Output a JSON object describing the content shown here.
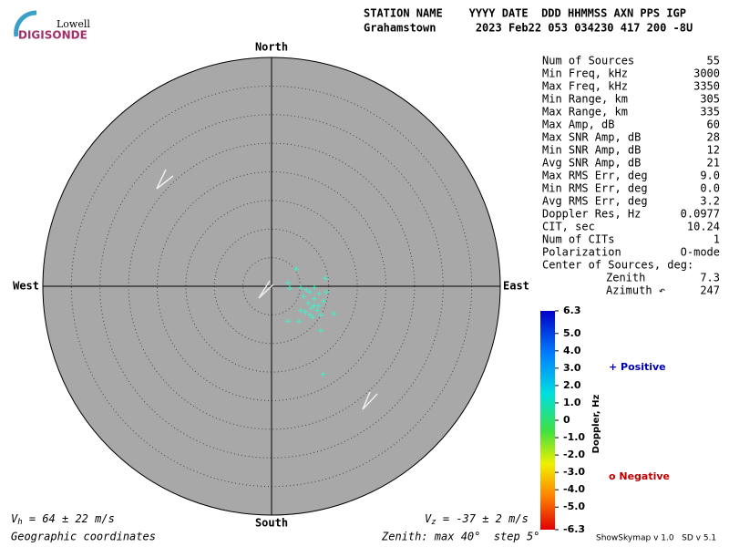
{
  "logo": {
    "small": "Lowell",
    "big": "DIGISONDE"
  },
  "header": {
    "row1": "STATION NAME    YYYY DATE  DDD HHMMSS AXN PPS IGP",
    "row2": "Grahamstown      2023 Feb22 053 034230 417 200 -8U"
  },
  "parameters": [
    {
      "label": "Num of Sources",
      "value": "55"
    },
    {
      "label": "Min Freq, kHz",
      "value": "3000"
    },
    {
      "label": "Max Freq, kHz",
      "value": "3350"
    },
    {
      "label": "Min Range, km",
      "value": "305"
    },
    {
      "label": "Max Range, km",
      "value": "335"
    },
    {
      "label": "Max Amp, dB",
      "value": "60"
    },
    {
      "label": "Max SNR Amp, dB",
      "value": "28"
    },
    {
      "label": "Min SNR Amp, dB",
      "value": "12"
    },
    {
      "label": "Avg SNR Amp, dB",
      "value": "21"
    },
    {
      "label": "Max RMS Err, deg",
      "value": "9.0"
    },
    {
      "label": "Min RMS Err, deg",
      "value": "0.0"
    },
    {
      "label": "Avg RMS Err, deg",
      "value": "3.2"
    },
    {
      "label": "Doppler Res, Hz",
      "value": "0.0977"
    },
    {
      "label": "CIT, sec",
      "value": "10.24"
    },
    {
      "label": "Num of CITs",
      "value": "1"
    },
    {
      "label": "Polarization",
      "value": "O-mode"
    }
  ],
  "center": {
    "title": "Center of Sources, deg:",
    "zenith_label": "Zenith",
    "zenith": "7.3",
    "azimuth_label": "Azimuth ↶",
    "azimuth": "247"
  },
  "chart_data": {
    "type": "polar-scatter",
    "directions": {
      "north": "North",
      "south": "South",
      "east": "East",
      "west": "West"
    },
    "rlim": [
      0,
      40
    ],
    "rticks": [
      5,
      10,
      15,
      20,
      25,
      30,
      35,
      40
    ],
    "series": [
      {
        "name": "Positive",
        "color": "#40f0c8",
        "marker": "+",
        "x": [
          4.3,
          2.9,
          3.2,
          5.1,
          9.4,
          7.5,
          6.7,
          8.3,
          5.6,
          7.5,
          6.4,
          9.1,
          7.0,
          8.0,
          5.9,
          5.1,
          8.6,
          10.9,
          2.9,
          4.8,
          7.2,
          8.6,
          9.0,
          6.1,
          7.4,
          8.3,
          6.7,
          9.6
        ],
        "y": [
          3.0,
          0.6,
          -0.3,
          -0.2,
          1.4,
          -0.2,
          -1.0,
          -1.3,
          -1.8,
          -2.2,
          -2.9,
          -2.6,
          -3.8,
          -4.2,
          -4.5,
          -4.2,
          -5.0,
          -4.8,
          -6.1,
          -6.1,
          -5.4,
          -7.7,
          -15.4,
          -0.6,
          -3.4,
          -3.4,
          -5.0,
          -1.0
        ]
      }
    ],
    "colorbar": {
      "label": "Doppler, Hz",
      "lim": [
        -6.3,
        6.3
      ],
      "ticks": [
        6.3,
        {
          "value": 5,
          "label": "5.0"
        },
        {
          "value": 4,
          "label": "4.0"
        },
        {
          "value": 3,
          "label": "3.0"
        },
        {
          "value": 2,
          "label": "2.0"
        },
        {
          "value": 1,
          "label": "1.0"
        },
        0,
        {
          "value": -1,
          "label": "-1.0"
        },
        {
          "value": -2,
          "label": "-2.0"
        },
        {
          "value": -3,
          "label": "-3.0"
        },
        {
          "value": -4,
          "label": "-4.0"
        },
        {
          "value": -5,
          "label": "-5.0"
        },
        -6.3
      ]
    },
    "legend": {
      "positive": "+ Positive",
      "negative": "o Negative"
    }
  },
  "footer": {
    "vh_symbol": "V",
    "vh_sub": "h",
    "vh_text": " = 64 ± 22 m/s",
    "vz_symbol": "V",
    "vz_sub": "z",
    "vz_text": " = -37 ± 2 m/s",
    "coords": "Geographic coordinates",
    "zenith": "Zenith: max 40°  step 5°",
    "version": "ShowSkymap v 1.0   SD v 5.1"
  }
}
